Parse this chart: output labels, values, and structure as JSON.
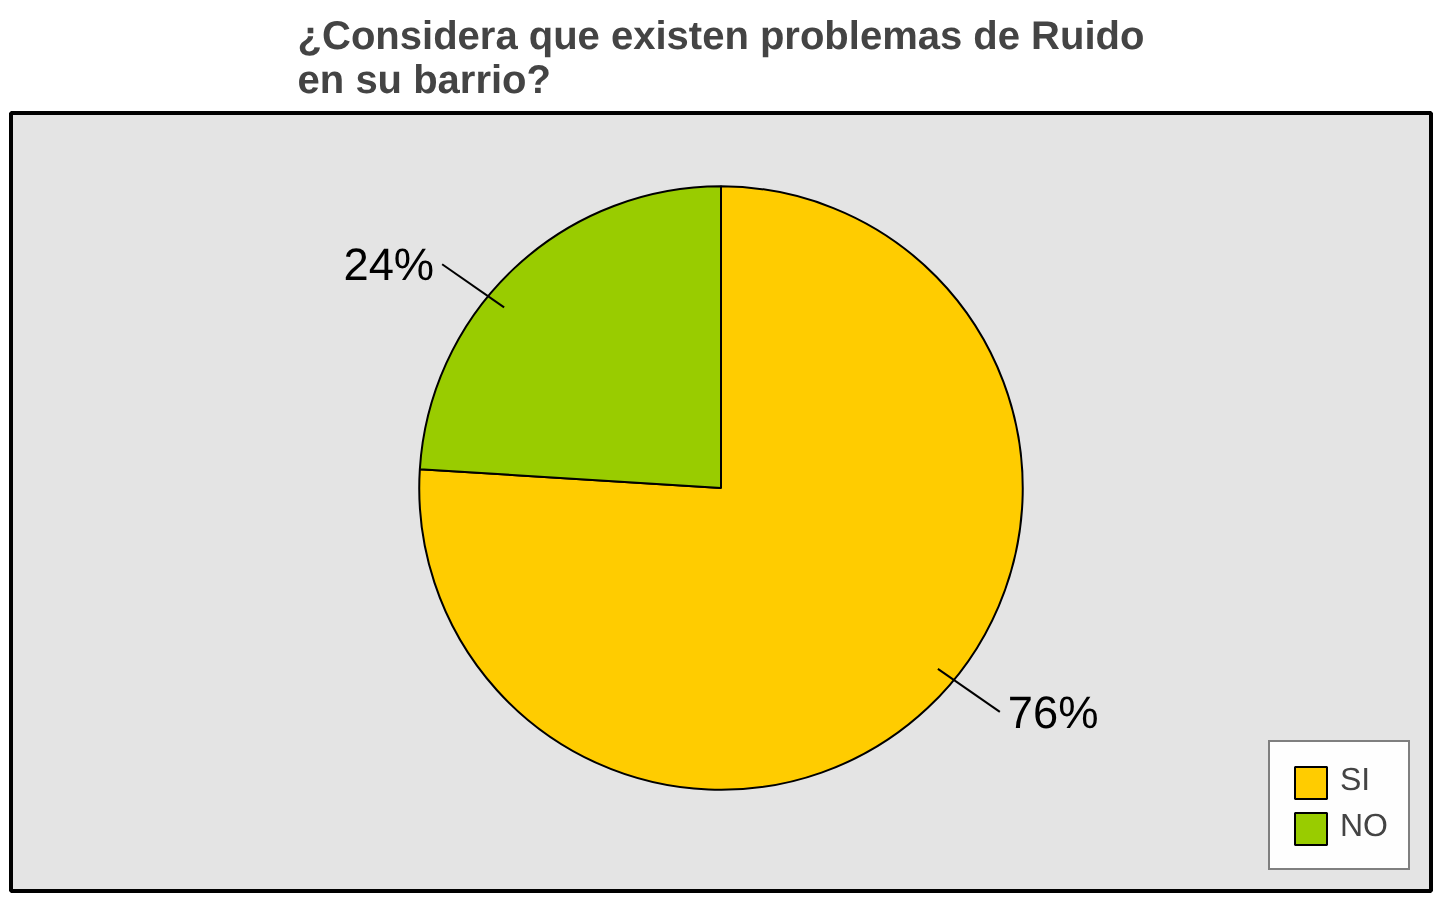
{
  "chart_data": {
    "type": "pie",
    "title": "¿Considera que existen problemas de Ruido\nen su barrio?",
    "categories": [
      "SI",
      "NO"
    ],
    "values": [
      76,
      24
    ],
    "colors": [
      "#ffcc00",
      "#99cc00"
    ],
    "value_labels": [
      "76%",
      "24%"
    ],
    "legend": "bottom right"
  }
}
